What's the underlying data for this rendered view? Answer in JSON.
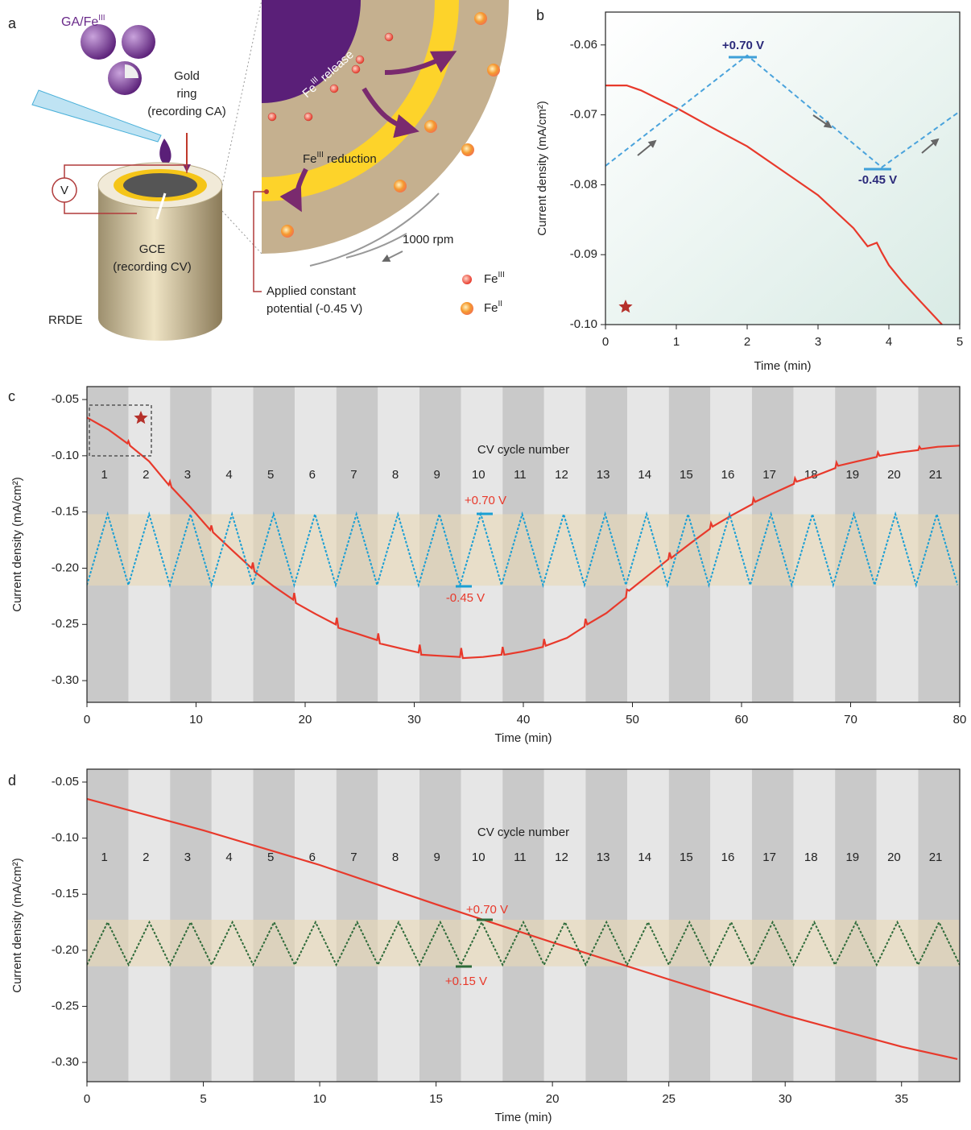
{
  "panel_labels": [
    "a",
    "b",
    "c",
    "d"
  ],
  "diagram": {
    "label_ga": {
      "base": "GA/Fe",
      "sup": "III"
    },
    "gold_ring": [
      "Gold",
      "ring",
      "(recording CA)"
    ],
    "gce": [
      "GCE",
      "(recording CV)"
    ],
    "rrde": "RRDE",
    "voltmeter": "V",
    "release": {
      "base": "Fe",
      "sup": "III",
      "rest": " release"
    },
    "reduction": {
      "base": "Fe",
      "sup": "III",
      "rest": " reduction"
    },
    "speed": "1000 rpm",
    "applied": [
      "Applied constant",
      "potential (-0.45 V)"
    ],
    "legend": [
      {
        "base": "Fe",
        "sup": "III"
      },
      {
        "base": "Fe",
        "sup": "II"
      }
    ]
  },
  "chart_data": [
    {
      "type": "line",
      "xlabel": "Time (min)",
      "ylabel": "Current density (mA/cm²)",
      "xlim": [
        0,
        5
      ],
      "ylim": [
        -0.1,
        -0.0553
      ],
      "xticks": [
        0,
        1,
        2,
        3,
        4,
        5
      ],
      "yticks": [
        {
          "value": -0.1,
          "label": "-0.10"
        },
        -0.09,
        -0.08,
        -0.07,
        -0.06
      ],
      "series": [
        {
          "color": "#e8392b",
          "x": [
            0,
            0.3,
            0.5,
            1,
            1.5,
            2,
            2.5,
            3,
            3.5,
            3.7,
            3.83,
            3.9,
            4.0,
            4.2,
            4.4,
            4.75
          ],
          "values": [
            -0.0658,
            -0.0658,
            -0.0665,
            -0.069,
            -0.0718,
            -0.0745,
            -0.078,
            -0.0815,
            -0.0862,
            -0.0888,
            -0.0883,
            -0.0897,
            -0.0915,
            -0.094,
            -0.0962,
            -0.1
          ]
        },
        {
          "color": "#4aa3dc",
          "dashed": true,
          "x": [
            0,
            2,
            3.9,
            5
          ],
          "values": [
            -0.0773,
            -0.0615,
            -0.0775,
            -0.0695
          ]
        }
      ],
      "annotations": [
        {
          "text": "+0.70 V",
          "color": "#2b2a7a"
        },
        {
          "text": "-0.45 V",
          "color": "#2b2a7a"
        }
      ],
      "marker_color": "#3fa0d8"
    },
    {
      "type": "line",
      "xlabel": "Time (min)",
      "ylabel": "Current density (mA/cm²)",
      "xlim": [
        0,
        80
      ],
      "ylim": [
        -0.3193,
        -0.0385
      ],
      "xticks": [
        0,
        10,
        20,
        30,
        40,
        50,
        60,
        70,
        80
      ],
      "yticks": [
        {
          "value": -0.3,
          "label": "-0.30"
        },
        -0.25,
        {
          "value": -0.2,
          "label": "-0.20"
        },
        -0.15,
        {
          "value": -0.1,
          "label": "-0.10"
        },
        -0.05
      ],
      "cycle_label": "CV cycle number",
      "cycle_numbers": [
        "1",
        "2",
        "3",
        "4",
        "5",
        "6",
        "7",
        "8",
        "9",
        "10",
        "11",
        "12",
        "13",
        "14",
        "15",
        "16",
        "17",
        "18",
        "19",
        "20",
        "21"
      ],
      "band": [
        -0.2155,
        -0.152
      ],
      "band_color": "#e9d9b6",
      "series": [
        {
          "color": "#e8392b",
          "x": [
            0,
            2,
            3.7,
            3.8,
            3.95,
            5.7,
            7.5,
            7.6,
            7.75,
            9.5,
            11.3,
            11.4,
            11.55,
            13.3,
            15.1,
            15.2,
            15.35,
            17.1,
            18.9,
            19.0,
            19.15,
            21,
            22.8,
            22.9,
            23.05,
            25,
            26.6,
            26.7,
            26.85,
            28.6,
            30.4,
            30.5,
            30.65,
            32.4,
            34.2,
            34.3,
            34.45,
            36.3,
            38.0,
            38.1,
            38.25,
            40,
            41.8,
            41.9,
            42.05,
            44,
            45.6,
            45.7,
            45.85,
            47.6,
            49.4,
            49.5,
            49.7,
            51.5,
            53.3,
            53.4,
            53.55,
            55.3,
            57.1,
            57.2,
            57.35,
            59.1,
            61,
            61.1,
            61.25,
            63,
            64.8,
            64.9,
            65.05,
            67,
            68.6,
            68.7,
            68.85,
            70.6,
            72.4,
            72.5,
            72.65,
            74.5,
            76.2,
            76.3,
            76.45,
            78,
            80
          ],
          "values": [
            -0.066,
            -0.077,
            -0.089,
            -0.087,
            -0.091,
            -0.105,
            -0.126,
            -0.123,
            -0.128,
            -0.146,
            -0.166,
            -0.162,
            -0.168,
            -0.184,
            -0.2,
            -0.195,
            -0.203,
            -0.216,
            -0.228,
            -0.222,
            -0.231,
            -0.241,
            -0.25,
            -0.244,
            -0.253,
            -0.259,
            -0.264,
            -0.258,
            -0.267,
            -0.271,
            -0.275,
            -0.268,
            -0.277,
            -0.278,
            -0.279,
            -0.271,
            -0.28,
            -0.279,
            -0.277,
            -0.27,
            -0.277,
            -0.274,
            -0.27,
            -0.263,
            -0.269,
            -0.262,
            -0.252,
            -0.245,
            -0.25,
            -0.24,
            -0.226,
            -0.219,
            -0.22,
            -0.206,
            -0.192,
            -0.186,
            -0.191,
            -0.178,
            -0.165,
            -0.16,
            -0.163,
            -0.153,
            -0.143,
            -0.138,
            -0.141,
            -0.133,
            -0.125,
            -0.12,
            -0.123,
            -0.117,
            -0.111,
            -0.106,
            -0.109,
            -0.105,
            -0.101,
            -0.097,
            -0.1,
            -0.097,
            -0.095,
            -0.092,
            -0.094,
            -0.092,
            -0.091
          ]
        },
        {
          "color": "#1a9fd4",
          "dashed": true,
          "x": [
            0,
            1.9,
            3.8,
            5.7,
            7.6,
            9.5,
            11.4,
            13.3,
            15.2,
            17.1,
            19,
            20.9,
            22.8,
            24.7,
            26.6,
            28.5,
            30.4,
            32.3,
            34.2,
            36.1,
            38,
            39.9,
            41.8,
            43.7,
            45.6,
            47.5,
            49.4,
            51.3,
            53.2,
            55.1,
            57,
            58.9,
            60.8,
            62.7,
            64.6,
            66.5,
            68.4,
            70.3,
            72.2,
            74.1,
            76,
            77.9,
            79.8
          ],
          "values": [
            -0.215,
            -0.152,
            -0.215,
            -0.152,
            -0.215,
            -0.152,
            -0.215,
            -0.152,
            -0.215,
            -0.152,
            -0.215,
            -0.152,
            -0.215,
            -0.152,
            -0.215,
            -0.152,
            -0.215,
            -0.152,
            -0.215,
            -0.152,
            -0.215,
            -0.152,
            -0.215,
            -0.152,
            -0.215,
            -0.152,
            -0.215,
            -0.152,
            -0.215,
            -0.152,
            -0.215,
            -0.152,
            -0.215,
            -0.152,
            -0.215,
            -0.152,
            -0.215,
            -0.152,
            -0.215,
            -0.152,
            -0.215,
            -0.152,
            -0.215
          ]
        }
      ],
      "annotations": [
        {
          "text": "+0.70 V",
          "color": "#e8392b"
        },
        {
          "text": "-0.45 V",
          "color": "#e8392b"
        }
      ],
      "marker_color": "#1a9fd4"
    },
    {
      "type": "line",
      "xlabel": "Time (min)",
      "ylabel": "Current density (mA/cm²)",
      "xlim": [
        0,
        37.5
      ],
      "ylim": [
        -0.3172,
        -0.0385
      ],
      "xticks": [
        0,
        5,
        10,
        15,
        20,
        25,
        30,
        35
      ],
      "yticks": [
        {
          "value": -0.3,
          "label": "-0.30"
        },
        -0.25,
        {
          "value": -0.2,
          "label": "-0.20"
        },
        -0.15,
        {
          "value": -0.1,
          "label": "-0.10"
        },
        -0.05
      ],
      "cycle_label": "CV cycle number",
      "cycle_numbers": [
        "1",
        "2",
        "3",
        "4",
        "5",
        "6",
        "7",
        "8",
        "9",
        "10",
        "11",
        "12",
        "13",
        "14",
        "15",
        "16",
        "17",
        "18",
        "19",
        "20",
        "21"
      ],
      "band": [
        -0.2143,
        -0.1728
      ],
      "band_color": "#e9d9b6",
      "series": [
        {
          "color": "#e8392b",
          "x": [
            0,
            5,
            10,
            15,
            20,
            25,
            30,
            35,
            37.4
          ],
          "values": [
            -0.065,
            -0.093,
            -0.124,
            -0.159,
            -0.193,
            -0.226,
            -0.258,
            -0.286,
            -0.297
          ]
        },
        {
          "color": "#2e6b3a",
          "dashed": true,
          "x": [
            0,
            0.89,
            1.79,
            2.68,
            3.57,
            4.46,
            5.36,
            6.25,
            7.14,
            8.04,
            8.93,
            9.82,
            10.71,
            11.61,
            12.5,
            13.39,
            14.29,
            15.18,
            16.07,
            16.96,
            17.86,
            18.75,
            19.64,
            20.54,
            21.43,
            22.32,
            23.21,
            24.11,
            25,
            25.89,
            26.79,
            27.68,
            28.57,
            29.46,
            30.36,
            31.25,
            32.14,
            33.04,
            33.93,
            34.82,
            35.71,
            36.61,
            37.5
          ],
          "values": [
            -0.213,
            -0.175,
            -0.213,
            -0.175,
            -0.213,
            -0.175,
            -0.213,
            -0.175,
            -0.213,
            -0.175,
            -0.213,
            -0.175,
            -0.213,
            -0.175,
            -0.213,
            -0.175,
            -0.213,
            -0.175,
            -0.213,
            -0.175,
            -0.213,
            -0.175,
            -0.213,
            -0.175,
            -0.213,
            -0.175,
            -0.213,
            -0.175,
            -0.213,
            -0.175,
            -0.213,
            -0.175,
            -0.213,
            -0.175,
            -0.213,
            -0.175,
            -0.213,
            -0.175,
            -0.213,
            -0.175,
            -0.213,
            -0.175,
            -0.213
          ]
        }
      ],
      "annotations": [
        {
          "text": "+0.70 V",
          "color": "#e8392b"
        },
        {
          "text": "+0.15 V",
          "color": "#e8392b"
        }
      ],
      "marker_color": "#2e6b3a"
    }
  ]
}
